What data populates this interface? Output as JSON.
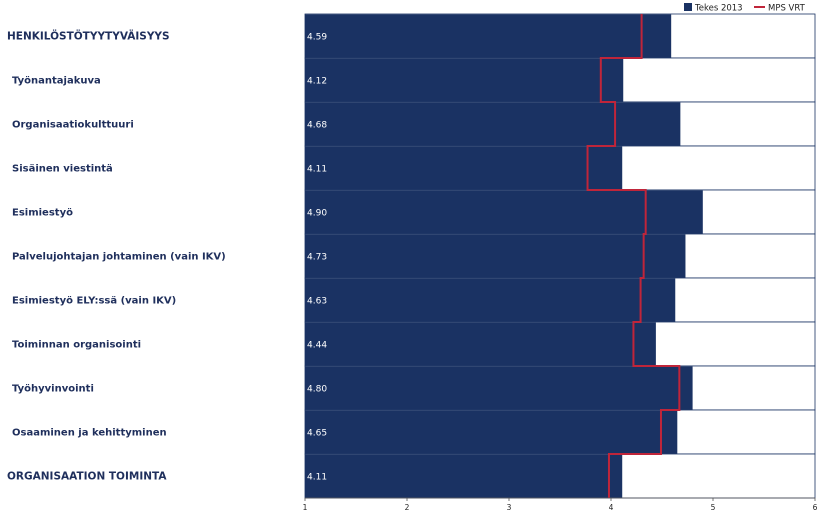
{
  "chart_data": {
    "type": "bar",
    "orientation": "horizontal",
    "categories": [
      "HENKILÖSTÖTYYTYVÄISYYS",
      "Työnantajakuva",
      "Organisaatiokulttuuri",
      "Sisäinen viestintä",
      "Esimiestyö",
      "Palvelujohtajan johtaminen (vain IKV)",
      "Esimiestyö ELY:ssä (vain IKV)",
      "Toiminnan organisointi",
      "Työhyvinvointi",
      "Osaaminen ja kehittyminen",
      "ORGANISAATION TOIMINTA"
    ],
    "heading_categories": [
      0,
      10
    ],
    "series": [
      {
        "name": "Tekes 2013",
        "type": "bar",
        "color": "#1a3263",
        "values": [
          4.59,
          4.12,
          4.68,
          4.11,
          4.9,
          4.73,
          4.63,
          4.44,
          4.8,
          4.65,
          4.11
        ],
        "value_labels": [
          "4.59",
          "4.12",
          "4.68",
          "4.11",
          "4.90",
          "4.73",
          "4.63",
          "4.44",
          "4.80",
          "4.65",
          "4.11"
        ]
      },
      {
        "name": "MPS VRT",
        "type": "step-line",
        "color": "#c0253a",
        "values": [
          4.3,
          3.9,
          4.04,
          3.77,
          4.34,
          4.32,
          4.29,
          4.22,
          4.67,
          4.49,
          3.98
        ]
      }
    ],
    "xlim": [
      1,
      6
    ],
    "xticks": [
      "1",
      "2",
      "3",
      "4",
      "5",
      "6"
    ],
    "legend_position": "top-right",
    "grid": false,
    "title": "",
    "xlabel": "",
    "ylabel": ""
  },
  "colors": {
    "bar": "#1a3263",
    "reference_line": "#c0253a",
    "category_text": "#1f2f5c",
    "plot_border": "#1a3263"
  }
}
